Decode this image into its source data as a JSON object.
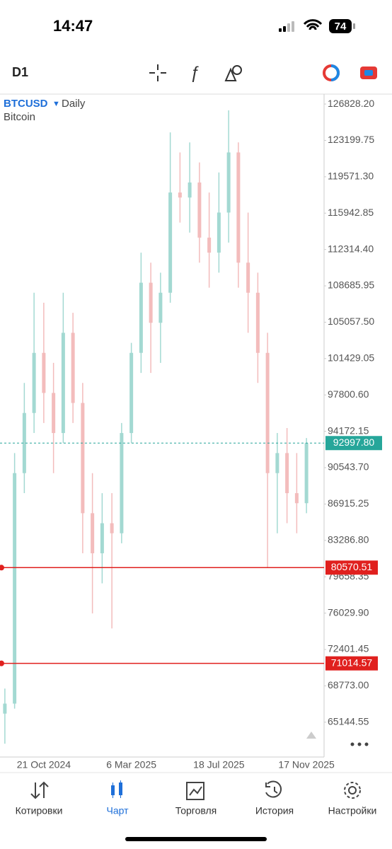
{
  "status": {
    "time": "14:47",
    "battery": "74"
  },
  "toolbar": {
    "timeframe": "D1"
  },
  "chart_data": {
    "type": "candlestick",
    "symbol": "BTCUSD",
    "period": "Daily",
    "description": "Bitcoin",
    "categories": [
      null,
      null,
      null,
      null,
      "21 Oct 2024",
      null,
      null,
      null,
      null,
      null,
      null,
      null,
      null,
      "6 Mar 2025",
      null,
      null,
      null,
      null,
      null,
      null,
      null,
      null,
      "18 Jul 2025",
      null,
      null,
      null,
      null,
      null,
      null,
      null,
      null,
      "17 Nov 2025"
    ],
    "open": [
      66000,
      67000,
      90000,
      96000,
      102000,
      98000,
      94000,
      104000,
      97000,
      86000,
      82000,
      85000,
      84000,
      94000,
      102000,
      109000,
      105000,
      108000,
      118000,
      117500,
      119000,
      113500,
      112000,
      116000,
      122000,
      111000,
      108000,
      102000,
      90000,
      92000,
      88000,
      87000
    ],
    "high": [
      68500,
      92000,
      99000,
      108000,
      107000,
      101000,
      108000,
      106000,
      99000,
      90000,
      88000,
      88000,
      95000,
      103000,
      112000,
      111000,
      110000,
      124000,
      122000,
      123000,
      121000,
      118000,
      120000,
      126200,
      123000,
      116000,
      110000,
      104000,
      94000,
      94500,
      92000,
      93500
    ],
    "low": [
      63000,
      66500,
      88000,
      94000,
      95000,
      90000,
      93000,
      95000,
      82000,
      76000,
      79000,
      74500,
      83000,
      93000,
      100000,
      100000,
      101000,
      107000,
      115000,
      114000,
      111000,
      108500,
      110000,
      113000,
      108500,
      104000,
      99000,
      80600,
      84000,
      85000,
      84000,
      86000
    ],
    "close": [
      67000,
      90000,
      96000,
      102000,
      98000,
      94000,
      104000,
      97000,
      86000,
      82000,
      85000,
      84000,
      94000,
      102000,
      109000,
      105000,
      108000,
      118000,
      117500,
      119000,
      113500,
      112000,
      116000,
      122000,
      111000,
      108000,
      102000,
      90000,
      92000,
      88000,
      87000,
      93000
    ],
    "up_color": "#a3d9d2",
    "down_color": "#f3bcbc",
    "ylim": [
      61670,
      127680
    ],
    "yticks": [
      {
        "value": 126828.2,
        "label": "126828.20"
      },
      123199.75,
      {
        "value": 119571.3,
        "label": "119571.30"
      },
      115942.85,
      {
        "value": 112314.4,
        "label": "112314.40"
      },
      108685.95,
      {
        "value": 105057.5,
        "label": "105057.50"
      },
      101429.05,
      {
        "value": 97800.6,
        "label": "97800.60"
      },
      94172.15,
      {
        "value": 90543.7,
        "label": "90543.70"
      },
      86915.25,
      {
        "value": 83286.8,
        "label": "83286.80"
      },
      79658.35,
      {
        "value": 76029.9,
        "label": "76029.90"
      },
      72401.45,
      {
        "value": 68773,
        "label": "68773.00"
      },
      65144.55
    ],
    "current_price": {
      "value": 92997.8,
      "label": "92997.80"
    },
    "current_color": "#26a69a",
    "levels": [
      80570.51,
      71014.57
    ],
    "level_color": "#e0201e"
  },
  "tabs": [
    {
      "label": "Котировки",
      "active": false
    },
    {
      "label": "Чарт",
      "active": true
    },
    {
      "label": "Торговля",
      "active": false
    },
    {
      "label": "История",
      "active": false
    },
    {
      "label": "Настройки",
      "active": false
    }
  ]
}
